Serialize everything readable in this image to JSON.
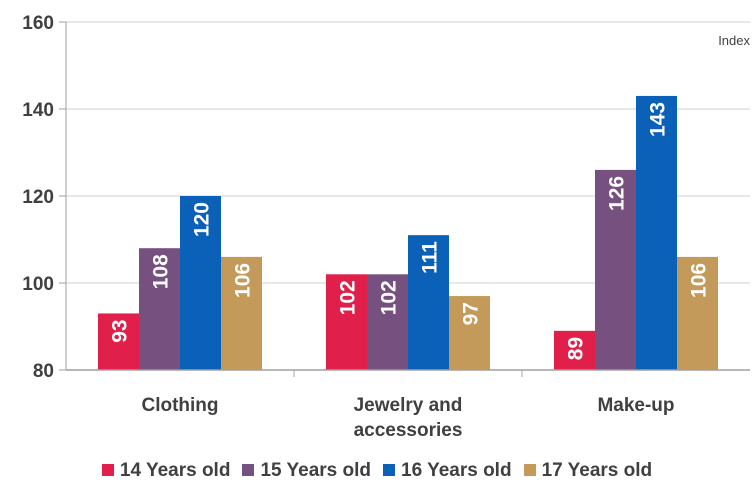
{
  "chart_data": {
    "type": "bar",
    "unit_label": "Index",
    "categories": [
      "Clothing",
      "Jewelry and accessories",
      "Make-up"
    ],
    "category_lines": [
      [
        "Clothing"
      ],
      [
        "Jewelry and",
        "accessories"
      ],
      [
        "Make-up"
      ]
    ],
    "series": [
      {
        "name": "14 Years old",
        "color": "#e0204a",
        "values": [
          93,
          102,
          89
        ]
      },
      {
        "name": "15 Years old",
        "color": "#76507f",
        "values": [
          108,
          102,
          126
        ]
      },
      {
        "name": "16 Years old",
        "color": "#0b60b8",
        "values": [
          120,
          111,
          143
        ]
      },
      {
        "name": "17 Years old",
        "color": "#c39a5a",
        "values": [
          106,
          97,
          106
        ]
      }
    ],
    "ylim": [
      80,
      160
    ],
    "yticks": [
      80,
      100,
      120,
      140,
      160
    ],
    "grid": true,
    "legend_position": "bottom",
    "title": "",
    "xlabel": "",
    "ylabel": ""
  }
}
